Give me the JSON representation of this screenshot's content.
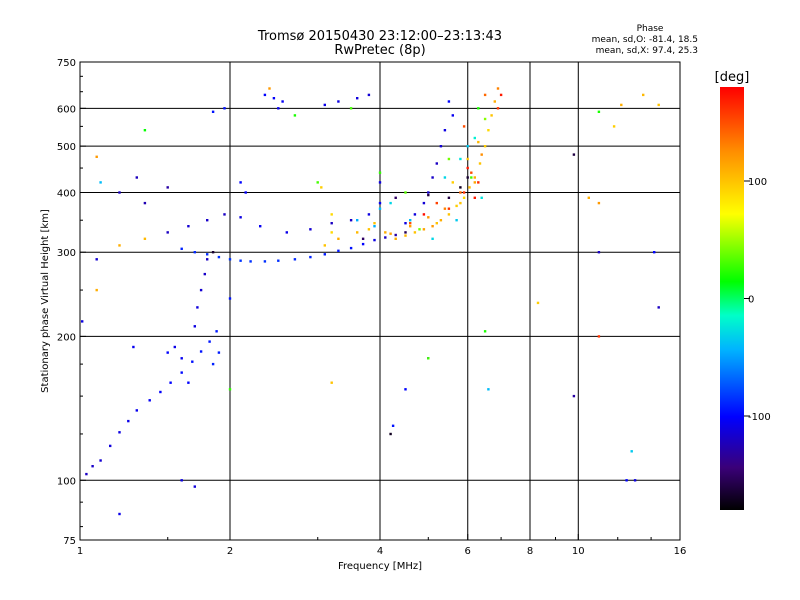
{
  "chart_data": {
    "type": "scatter",
    "title": "Tromsø 20150430 23:12:00–23:13:43",
    "subtitle": "RwPretec (8p)",
    "xlabel": "Frequency [MHz]",
    "ylabel": "Stationary phase Virtual Height [km]",
    "x_scale": "log",
    "y_scale": "log",
    "xlim": [
      1,
      16
    ],
    "ylim": [
      75,
      750
    ],
    "x_ticks": [
      1,
      2,
      4,
      6,
      8,
      10,
      16
    ],
    "x_tick_labels": [
      "1",
      "2",
      "4",
      "6",
      "8",
      "10",
      "16"
    ],
    "x_grid": [
      2,
      4,
      6,
      8,
      10
    ],
    "y_ticks": [
      75,
      100,
      200,
      300,
      400,
      500,
      600,
      750
    ],
    "y_tick_labels": [
      "75",
      "100",
      "200",
      "300",
      "400",
      "500",
      "600",
      "750"
    ],
    "y_grid": [
      100,
      200,
      300,
      400,
      500,
      600
    ],
    "grid": true,
    "stats": {
      "heading": "Phase",
      "line_o": "mean, sd,O: -81.4, 18.5",
      "line_x": "mean, sd,X:  97.4, 25.3"
    },
    "colorbar": {
      "label": "[deg]",
      "range": [
        -180,
        180
      ],
      "ticks": [
        100,
        0,
        -100
      ],
      "tick_labels": [
        "100",
        "0",
        "-100"
      ]
    },
    "series": [
      {
        "points": [
          [
            1.03,
            103,
            -120
          ],
          [
            1.06,
            107,
            -118
          ],
          [
            1.1,
            110,
            -115
          ],
          [
            1.15,
            118,
            -112
          ],
          [
            1.2,
            126,
            -110
          ],
          [
            1.25,
            133,
            -108
          ],
          [
            1.3,
            140,
            -106
          ],
          [
            1.38,
            147,
            -104
          ],
          [
            1.45,
            153,
            -102
          ],
          [
            1.52,
            160,
            -100
          ],
          [
            1.6,
            168,
            -98
          ],
          [
            1.68,
            177,
            -96
          ],
          [
            1.75,
            186,
            -95
          ],
          [
            1.82,
            195,
            -94
          ],
          [
            1.88,
            205,
            -93
          ],
          [
            1.7,
            210,
            -110
          ],
          [
            1.72,
            230,
            -112
          ],
          [
            1.75,
            250,
            -115
          ],
          [
            1.78,
            270,
            -118
          ],
          [
            1.8,
            290,
            -120
          ],
          [
            1.6,
            180,
            -105
          ],
          [
            1.65,
            160,
            -100
          ],
          [
            1.85,
            175,
            -90
          ],
          [
            1.9,
            185,
            -92
          ],
          [
            1.55,
            190,
            -108
          ],
          [
            1.6,
            305,
            -90
          ],
          [
            1.7,
            300,
            -88
          ],
          [
            1.8,
            297,
            -86
          ],
          [
            1.9,
            293,
            -85
          ],
          [
            2.0,
            290,
            -84
          ],
          [
            2.1,
            288,
            -84
          ],
          [
            2.2,
            287,
            -85
          ],
          [
            2.35,
            287,
            -86
          ],
          [
            2.5,
            288,
            -86
          ],
          [
            2.7,
            290,
            -88
          ],
          [
            2.9,
            293,
            -90
          ],
          [
            3.1,
            297,
            -92
          ],
          [
            3.3,
            302,
            -94
          ],
          [
            3.5,
            306,
            -96
          ],
          [
            3.7,
            312,
            -100
          ],
          [
            3.9,
            318,
            -110
          ],
          [
            4.1,
            322,
            -120
          ],
          [
            4.3,
            326,
            -130
          ],
          [
            1.5,
            330,
            -120
          ],
          [
            1.65,
            340,
            -115
          ],
          [
            1.8,
            350,
            -118
          ],
          [
            1.95,
            360,
            -120
          ],
          [
            2.1,
            355,
            -110
          ],
          [
            2.3,
            340,
            -105
          ],
          [
            2.6,
            330,
            -108
          ],
          [
            2.9,
            335,
            -115
          ],
          [
            3.2,
            345,
            -120
          ],
          [
            3.5,
            350,
            -118
          ],
          [
            3.8,
            360,
            -110
          ],
          [
            4.0,
            380,
            -105
          ],
          [
            1.35,
            380,
            -125
          ],
          [
            1.5,
            410,
            -130
          ],
          [
            1.85,
            590,
            -95
          ],
          [
            1.95,
            600,
            -96
          ],
          [
            2.35,
            640,
            -100
          ],
          [
            2.45,
            630,
            -102
          ],
          [
            2.55,
            620,
            -104
          ],
          [
            2.5,
            600,
            -106
          ],
          [
            3.1,
            610,
            -108
          ],
          [
            3.3,
            620,
            -110
          ],
          [
            3.6,
            630,
            -112
          ],
          [
            3.8,
            640,
            -114
          ],
          [
            5.5,
            620,
            -100
          ],
          [
            5.6,
            580,
            -105
          ],
          [
            5.4,
            540,
            -110
          ],
          [
            5.3,
            500,
            -115
          ],
          [
            5.2,
            460,
            -120
          ],
          [
            5.1,
            430,
            -118
          ],
          [
            5.0,
            400,
            -116
          ],
          [
            4.9,
            380,
            -114
          ],
          [
            4.7,
            360,
            -112
          ],
          [
            4.5,
            345,
            -110
          ],
          [
            1.2,
            400,
            -120
          ],
          [
            1.3,
            430,
            -122
          ],
          [
            2.1,
            420,
            -100
          ],
          [
            2.15,
            400,
            -102
          ],
          [
            4.0,
            420,
            -110
          ],
          [
            1.01,
            215,
            -110
          ],
          [
            1.08,
            290,
            -115
          ],
          [
            1.28,
            190,
            -105
          ],
          [
            1.5,
            185,
            -100
          ],
          [
            2.0,
            240,
            -95
          ],
          [
            1.6,
            100,
            -110
          ],
          [
            1.7,
            97,
            -112
          ],
          [
            1.2,
            85,
            -108
          ],
          [
            12.5,
            100,
            -100
          ],
          [
            4.5,
            155,
            -100
          ],
          [
            4.25,
            130,
            -95
          ],
          [
            5.0,
            180,
            -105
          ],
          [
            13.0,
            100,
            -110
          ],
          [
            14.5,
            230,
            -120
          ],
          [
            14.2,
            300,
            -100
          ],
          [
            9.8,
            150,
            -130
          ],
          [
            11.0,
            300,
            -120
          ]
        ]
      },
      {
        "points": [
          [
            4.3,
            320,
            110
          ],
          [
            4.5,
            325,
            105
          ],
          [
            4.7,
            330,
            100
          ],
          [
            4.9,
            335,
            115
          ],
          [
            5.1,
            340,
            120
          ],
          [
            5.3,
            350,
            110
          ],
          [
            5.5,
            360,
            100
          ],
          [
            5.7,
            375,
            95
          ],
          [
            5.9,
            390,
            90
          ],
          [
            6.05,
            410,
            105
          ],
          [
            6.2,
            430,
            110
          ],
          [
            6.35,
            460,
            100
          ],
          [
            6.5,
            500,
            95
          ],
          [
            6.6,
            540,
            90
          ],
          [
            6.7,
            580,
            100
          ],
          [
            6.8,
            620,
            110
          ],
          [
            4.6,
            340,
            115
          ],
          [
            5.0,
            355,
            120
          ],
          [
            5.4,
            370,
            130
          ],
          [
            5.8,
            400,
            140
          ],
          [
            6.1,
            440,
            150
          ],
          [
            6.4,
            480,
            125
          ],
          [
            5.6,
            420,
            95
          ],
          [
            6.0,
            470,
            100
          ],
          [
            6.3,
            510,
            105
          ],
          [
            3.1,
            310,
            100
          ],
          [
            3.2,
            330,
            90
          ],
          [
            3.3,
            320,
            110
          ],
          [
            3.6,
            330,
            105
          ],
          [
            3.8,
            335,
            100
          ],
          [
            3.05,
            410,
            95
          ],
          [
            3.2,
            360,
            90
          ],
          [
            3.9,
            345,
            100
          ],
          [
            4.1,
            330,
            110
          ],
          [
            4.2,
            328,
            115
          ],
          [
            2.4,
            660,
            120
          ],
          [
            6.9,
            660,
            130
          ],
          [
            5.2,
            345,
            100
          ],
          [
            5.8,
            380,
            100
          ],
          [
            6.2,
            420,
            115
          ],
          [
            1.08,
            475,
            120
          ],
          [
            1.2,
            310,
            110
          ],
          [
            1.35,
            320,
            105
          ],
          [
            10.5,
            390,
            110
          ],
          [
            11.0,
            380,
            120
          ],
          [
            13.5,
            640,
            105
          ],
          [
            14.5,
            610,
            100
          ],
          [
            3.2,
            160,
            100
          ],
          [
            8.3,
            235,
            95
          ],
          [
            1.08,
            250,
            110
          ],
          [
            12.2,
            610,
            110
          ],
          [
            11.8,
            550,
            95
          ],
          [
            6.5,
            640,
            140
          ],
          [
            6.9,
            600,
            160
          ],
          [
            5.9,
            550,
            150
          ]
        ]
      },
      {
        "points": [
          [
            2.7,
            580,
            20
          ],
          [
            3.5,
            600,
            30
          ],
          [
            5.5,
            470,
            40
          ],
          [
            6.1,
            430,
            30
          ],
          [
            6.3,
            600,
            20
          ],
          [
            4.0,
            440,
            25
          ],
          [
            4.5,
            400,
            35
          ],
          [
            6.5,
            570,
            45
          ],
          [
            5.0,
            180,
            30
          ],
          [
            6.5,
            205,
            20
          ],
          [
            1.35,
            540,
            15
          ],
          [
            2.0,
            155,
            25
          ],
          [
            11.0,
            590,
            20
          ],
          [
            3.0,
            420,
            30
          ],
          [
            4.8,
            335,
            40
          ]
        ]
      },
      {
        "points": [
          [
            5.4,
            430,
            -30
          ],
          [
            5.8,
            470,
            -25
          ],
          [
            6.2,
            520,
            -20
          ],
          [
            6.0,
            500,
            -35
          ],
          [
            4.6,
            350,
            -40
          ],
          [
            4.2,
            380,
            -30
          ],
          [
            3.6,
            350,
            -45
          ],
          [
            5.7,
            350,
            -35
          ],
          [
            6.4,
            390,
            -25
          ],
          [
            4.0,
            370,
            -40
          ],
          [
            1.1,
            420,
            -40
          ],
          [
            6.6,
            155,
            -40
          ],
          [
            12.8,
            115,
            -35
          ],
          [
            3.9,
            340,
            -45
          ],
          [
            5.1,
            320,
            -30
          ]
        ]
      },
      {
        "points": [
          [
            5.9,
            400,
            160
          ],
          [
            6.2,
            390,
            170
          ],
          [
            6.3,
            420,
            165
          ],
          [
            5.5,
            370,
            160
          ],
          [
            4.9,
            360,
            175
          ],
          [
            5.2,
            380,
            155
          ],
          [
            6.0,
            450,
            170
          ],
          [
            4.6,
            345,
            150
          ],
          [
            11.0,
            200,
            160
          ],
          [
            7.0,
            640,
            170
          ]
        ]
      },
      {
        "points": [
          [
            5.5,
            390,
            -160
          ],
          [
            5.8,
            410,
            -170
          ],
          [
            6.0,
            430,
            -165
          ],
          [
            4.3,
            390,
            -150
          ],
          [
            4.5,
            330,
            -155
          ],
          [
            5.0,
            395,
            -160
          ],
          [
            3.7,
            320,
            -150
          ],
          [
            4.2,
            125,
            -170
          ],
          [
            9.8,
            480,
            -160
          ],
          [
            1.85,
            300,
            -165
          ]
        ]
      }
    ]
  }
}
